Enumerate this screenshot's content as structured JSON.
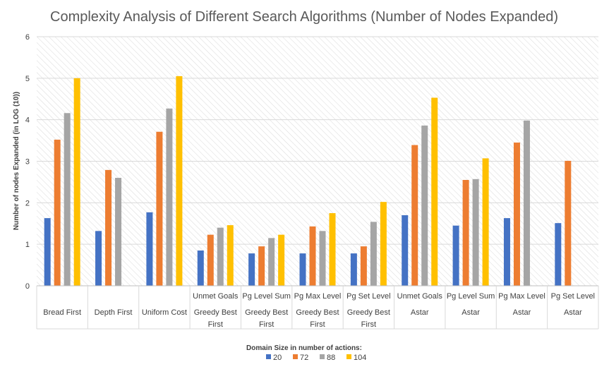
{
  "chart_data": {
    "type": "bar",
    "title": "Complexity Analysis of Different Search Algorithms (Number of Nodes Expanded)",
    "ylabel": "Number of nodes Expanded (in LOG (10))",
    "xlabel": "",
    "ylim": [
      0,
      6
    ],
    "yticks": [
      "0",
      "1",
      "2",
      "3",
      "4",
      "5",
      "6"
    ],
    "grid": true,
    "legend_placement": "bottom",
    "legend_title": "Domain Size in number of actions:",
    "categories": [
      {
        "lines": [
          "",
          "Bread First"
        ]
      },
      {
        "lines": [
          "",
          "Depth First"
        ]
      },
      {
        "lines": [
          "",
          "Uniform Cost"
        ]
      },
      {
        "lines": [
          "Unmet Goals",
          "Greedy Best",
          "First"
        ]
      },
      {
        "lines": [
          "Pg Level Sum",
          "Greedy Best",
          "First"
        ]
      },
      {
        "lines": [
          "Pg Max Level",
          "Greedy Best",
          "First"
        ]
      },
      {
        "lines": [
          "Pg Set Level",
          "Greedy Best",
          "First"
        ]
      },
      {
        "lines": [
          "Unmet Goals",
          "Astar"
        ]
      },
      {
        "lines": [
          "Pg Level Sum",
          "Astar"
        ]
      },
      {
        "lines": [
          "Pg Max Level",
          "Astar"
        ]
      },
      {
        "lines": [
          "Pg Set Level",
          "Astar"
        ]
      }
    ],
    "series": [
      {
        "name": "20",
        "color": "#4472C4",
        "values": [
          1.63,
          1.32,
          1.77,
          0.85,
          0.78,
          0.78,
          0.78,
          1.7,
          1.45,
          1.63,
          1.51
        ]
      },
      {
        "name": "72",
        "color": "#ED7D31",
        "values": [
          3.52,
          2.79,
          3.71,
          1.23,
          0.95,
          1.43,
          0.95,
          3.39,
          2.55,
          3.45,
          3.01
        ]
      },
      {
        "name": "88",
        "color": "#A5A5A5",
        "values": [
          4.16,
          2.6,
          4.27,
          1.4,
          1.15,
          1.32,
          1.54,
          3.86,
          2.57,
          3.98,
          null
        ]
      },
      {
        "name": "104",
        "color": "#FFC000",
        "values": [
          5.0,
          null,
          5.05,
          1.46,
          1.23,
          1.75,
          2.02,
          4.53,
          3.07,
          null,
          null
        ]
      }
    ]
  }
}
